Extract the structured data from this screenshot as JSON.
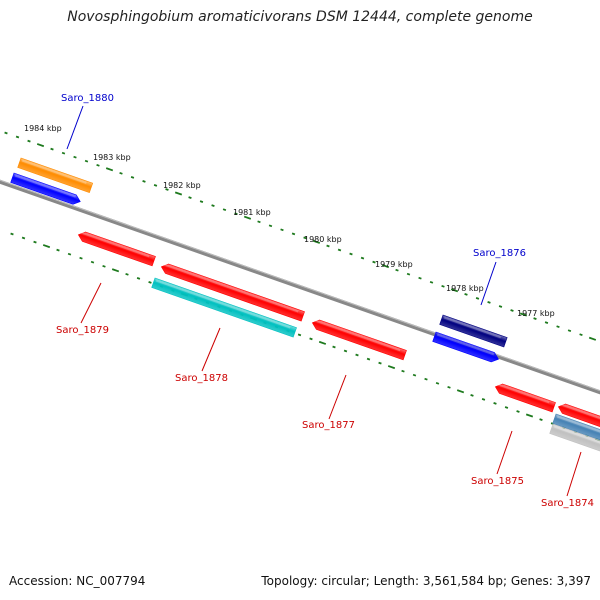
{
  "title": "Novosphingobium aromaticivorans DSM 12444, complete genome",
  "footer": {
    "accession": "Accession: NC_007794",
    "summary": "Topology: circular; Length: 3,561,584 bp; Genes: 3,397"
  },
  "colors": {
    "backbone": "#8c8c8c",
    "tick": "#1e7a1e",
    "label_forward": "#0000cc",
    "label_reverse": "#cc0000"
  },
  "scale_labels": [
    {
      "text": "1984 kbp"
    },
    {
      "text": "1983 kbp"
    },
    {
      "text": "1982 kbp"
    },
    {
      "text": "1981 kbp"
    },
    {
      "text": "1980 kbp"
    },
    {
      "text": "1979 kbp"
    },
    {
      "text": "1978 kbp"
    },
    {
      "text": "1977 kbp"
    }
  ],
  "labeled_genes": [
    {
      "name": "Saro_1880",
      "strand": "forward"
    },
    {
      "name": "Saro_1876",
      "strand": "forward"
    },
    {
      "name": "Saro_1879",
      "strand": "reverse"
    },
    {
      "name": "Saro_1878",
      "strand": "reverse"
    },
    {
      "name": "Saro_1877",
      "strand": "reverse"
    },
    {
      "name": "Saro_1875",
      "strand": "reverse"
    },
    {
      "name": "Saro_1874",
      "strand": "reverse"
    }
  ],
  "features": [
    {
      "color": "#ff8c00"
    },
    {
      "color": "#0000ff"
    },
    {
      "color": "#ff0000"
    },
    {
      "color": "#ff0000"
    },
    {
      "color": "#00c0c0"
    },
    {
      "color": "#ff0000"
    },
    {
      "color": "#000080"
    },
    {
      "color": "#0000ff"
    },
    {
      "color": "#ff0000"
    },
    {
      "color": "#ff0000"
    },
    {
      "color": "#4682b4"
    },
    {
      "color": "#c0c0c0"
    }
  ]
}
